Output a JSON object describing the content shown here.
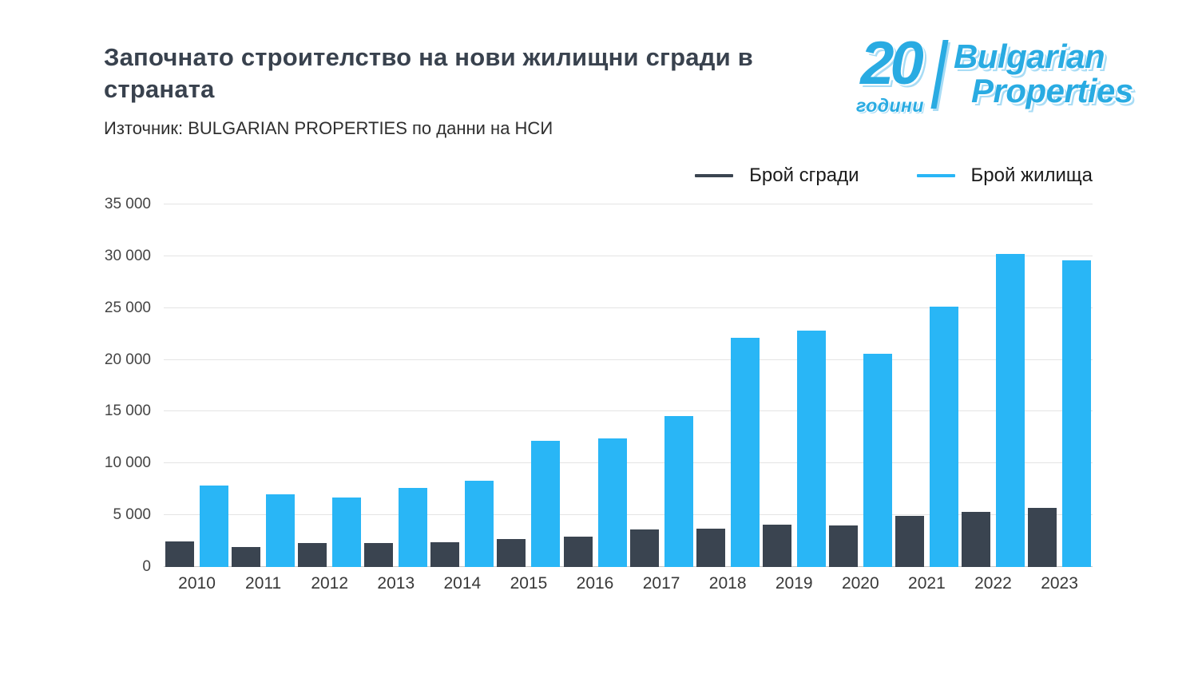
{
  "header": {
    "title": "Започнато строителство на нови жилищни сгради в страната",
    "source": "Източник: BULGARIAN PROPERTIES по данни на НСИ"
  },
  "logo": {
    "anniversary_number": "20",
    "anniversary_label": "години",
    "brand_top": "Bulgarian",
    "brand_bottom": "Properties",
    "color": "#29abe2"
  },
  "chart_data": {
    "type": "bar",
    "title": "Започнато строителство на нови жилищни сгради в страната",
    "categories": [
      "2010",
      "2011",
      "2012",
      "2013",
      "2014",
      "2015",
      "2016",
      "2017",
      "2018",
      "2019",
      "2020",
      "2021",
      "2022",
      "2023"
    ],
    "series": [
      {
        "key": "buildings",
        "name": "Брой сгради",
        "color": "#3a4450",
        "values": [
          2500,
          1900,
          2300,
          2300,
          2400,
          2700,
          2900,
          3600,
          3700,
          4100,
          4000,
          4900,
          5300,
          5700
        ]
      },
      {
        "key": "dwellings",
        "name": "Брой жилища",
        "color": "#29b6f6",
        "values": [
          7900,
          7000,
          6700,
          7600,
          8300,
          12200,
          12400,
          14600,
          22100,
          22800,
          20600,
          25100,
          30200,
          29600
        ]
      }
    ],
    "xlabel": "",
    "ylabel": "",
    "ylim": [
      0,
      35000
    ],
    "yticks": [
      {
        "value": 0,
        "label": "0"
      },
      {
        "value": 5000,
        "label": "5 000"
      },
      {
        "value": 10000,
        "label": "10 000"
      },
      {
        "value": 15000,
        "label": "15 000"
      },
      {
        "value": 20000,
        "label": "20 000"
      },
      {
        "value": 25000,
        "label": "25 000"
      },
      {
        "value": 30000,
        "label": "30 000"
      },
      {
        "value": 35000,
        "label": "35 000"
      }
    ],
    "grid": true,
    "legend_position": "top-right"
  }
}
